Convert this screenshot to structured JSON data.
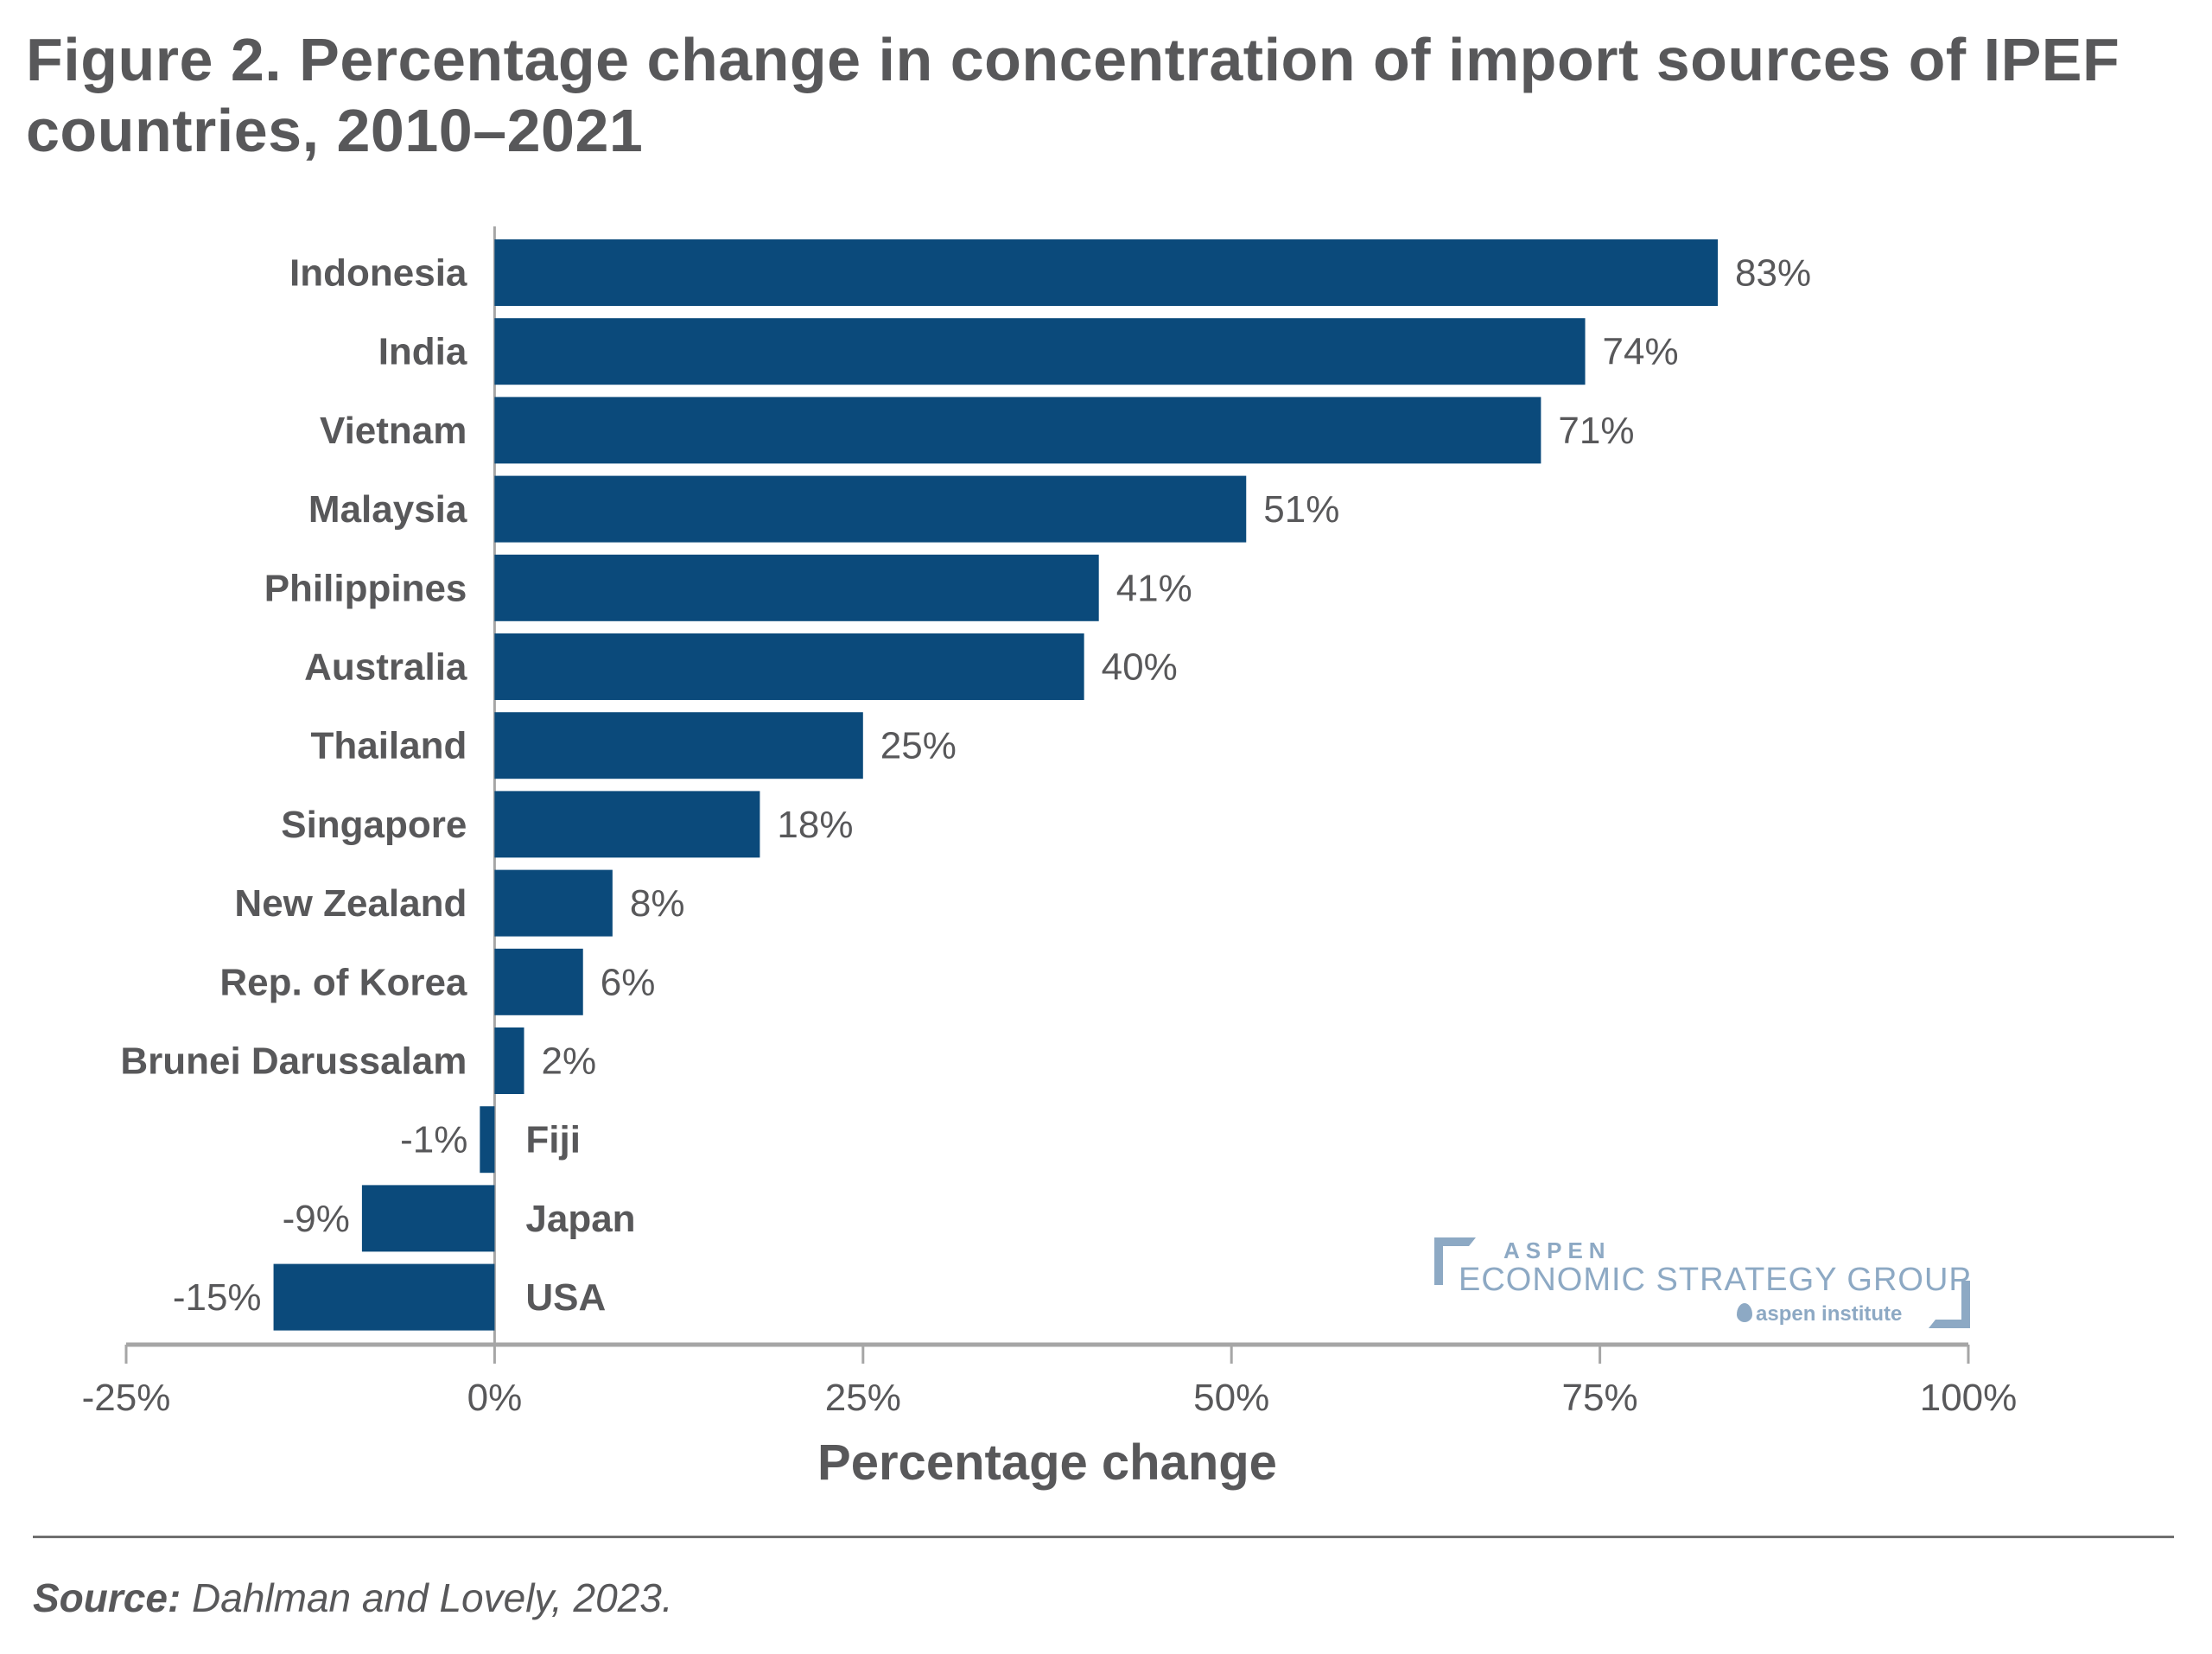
{
  "title": "Figure 2. Percentage change in concentration of import sources of IPEF countries, 2010–2021",
  "source": {
    "label": "Source:",
    "text": " Dahlman and Lovely, 2023."
  },
  "logo": {
    "line1": "ASPEN",
    "line2": "ECONOMIC STRATEGY GROUP",
    "line3": "aspen institute",
    "color": "#8da9c4"
  },
  "chart_data": {
    "type": "bar",
    "orientation": "horizontal",
    "title": "Figure 2. Percentage change in concentration of import sources of IPEF countries, 2010–2021",
    "xlabel": "Percentage change",
    "ylabel": "",
    "xlim": [
      -25,
      100
    ],
    "xticks": [
      -25,
      0,
      25,
      50,
      75,
      100
    ],
    "xtick_labels": [
      "-25%",
      "0%",
      "25%",
      "50%",
      "75%",
      "100%"
    ],
    "grid": false,
    "bar_color": "#0b4a7b",
    "categories": [
      "Indonesia",
      "India",
      "Vietnam",
      "Malaysia",
      "Philippines",
      "Australia",
      "Thailand",
      "Singapore",
      "New Zealand",
      "Rep. of Korea",
      "Brunei Darussalam",
      "Fiji",
      "Japan",
      "USA"
    ],
    "values": [
      83,
      74,
      71,
      51,
      41,
      40,
      25,
      18,
      8,
      6,
      2,
      -1,
      -9,
      -15
    ],
    "value_labels": [
      "83%",
      "74%",
      "71%",
      "51%",
      "41%",
      "40%",
      "25%",
      "18%",
      "8%",
      "6%",
      "2%",
      "-1%",
      "-9%",
      "-15%"
    ]
  }
}
